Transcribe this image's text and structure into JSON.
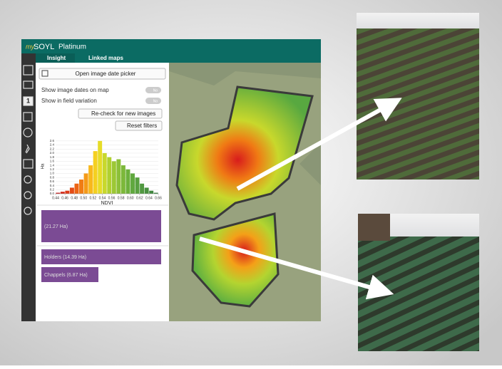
{
  "app": {
    "brand_prefix": "my",
    "brand": "SOYL",
    "edition": "Platinum",
    "menu": [
      "Insight",
      "Linked maps"
    ],
    "tool_badge": "1"
  },
  "panel": {
    "date_picker": "Open image date picker",
    "toggles": [
      {
        "label": "Show image dates on map",
        "state": "No"
      },
      {
        "label": "Show in field variation",
        "state": "No"
      }
    ],
    "recheck": "Re-check for new images",
    "reset": "Reset filters",
    "fields": [
      "(21.27 Ha)",
      "Holders (14.39 Ha)",
      "Chappels (6.87 Ha)"
    ]
  },
  "chart_data": {
    "type": "histogram",
    "xlabel": "NDVI",
    "ylabel": "Ha",
    "bins": [
      0.44,
      0.45,
      0.46,
      0.47,
      0.48,
      0.49,
      0.5,
      0.51,
      0.52,
      0.53,
      0.54,
      0.55,
      0.56,
      0.57,
      0.58,
      0.59,
      0.6,
      0.61,
      0.62,
      0.63,
      0.64,
      0.65,
      0.66
    ],
    "values": [
      0.05,
      0.1,
      0.15,
      0.3,
      0.5,
      0.7,
      1.0,
      1.4,
      2.1,
      2.6,
      2.0,
      1.8,
      1.6,
      1.7,
      1.4,
      1.2,
      1.0,
      0.8,
      0.5,
      0.3,
      0.15,
      0.05
    ],
    "colors": [
      "#c81e1e",
      "#d42a1a",
      "#dc3a18",
      "#e44c16",
      "#ec6414",
      "#f07c14",
      "#f49a18",
      "#f8b81c",
      "#f4d020",
      "#e6dc28",
      "#c8d82c",
      "#b0d030",
      "#9cc834",
      "#8cc038",
      "#7cb83a",
      "#6cb03c",
      "#60a83e",
      "#58a040",
      "#509840",
      "#489040",
      "#408840",
      "#388040"
    ],
    "xlim": [
      0.44,
      0.66
    ],
    "ylim": [
      0,
      2.7
    ],
    "xticks": [
      0.44,
      0.46,
      0.48,
      {
        "value": 0.5,
        "label": "0.50"
      },
      0.52,
      0.54,
      0.56,
      0.58,
      {
        "value": 0.6,
        "label": "0.60"
      },
      0.62,
      0.64,
      0.66
    ],
    "yticks": [
      {
        "value": 0,
        "label": "0.0"
      },
      0.2,
      0.4,
      0.6,
      0.8,
      {
        "value": 1,
        "label": "1.0"
      },
      1.2,
      1.4,
      1.6,
      1.8,
      {
        "value": 2,
        "label": "2.0"
      },
      2.2,
      2.4,
      2.6
    ]
  }
}
